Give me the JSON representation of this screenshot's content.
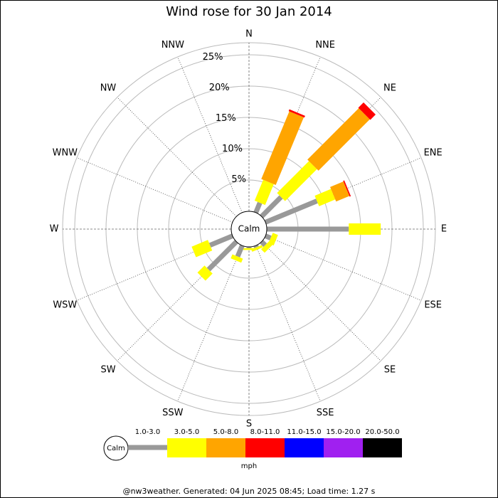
{
  "chart_data": {
    "type": "windrose",
    "title": "Wind rose for 30 Jan 2014",
    "directions": [
      "N",
      "NNE",
      "NE",
      "ENE",
      "E",
      "ESE",
      "SE",
      "SSE",
      "S",
      "SSW",
      "SW",
      "WSW",
      "W",
      "WNW",
      "NW",
      "NNW"
    ],
    "calm_label": "Calm",
    "series": [
      {
        "name": "1.0-3.0",
        "color": "#999999",
        "values": [
          0,
          1.7,
          4.4,
          8.9,
          13.1,
          0.9,
          0.8,
          0.3,
          0.2,
          1.9,
          6.3,
          3.9,
          0,
          0,
          0,
          0
        ]
      },
      {
        "name": "3.0-5.0",
        "color": "#ffff00",
        "values": [
          0,
          3.6,
          7.2,
          2.8,
          5.1,
          0.9,
          0.8,
          0.4,
          0.3,
          0.7,
          1.6,
          2.8,
          0,
          0,
          0,
          0
        ]
      },
      {
        "name": "5.0-8.0",
        "color": "#ffa500",
        "values": [
          0,
          11.7,
          11.6,
          2.3,
          0,
          0,
          0,
          0,
          0,
          0,
          0,
          0,
          0,
          0,
          0,
          0
        ]
      },
      {
        "name": "8.0-11.0",
        "color": "#ff0000",
        "values": [
          0,
          0.3,
          1.2,
          0.2,
          0,
          0,
          0,
          0,
          0,
          0,
          0,
          0,
          0,
          0,
          0,
          0
        ]
      },
      {
        "name": "11.0-15.0",
        "color": "#0000ff",
        "values": [
          0,
          0,
          0,
          0,
          0,
          0,
          0,
          0,
          0,
          0,
          0,
          0,
          0,
          0,
          0,
          0
        ]
      },
      {
        "name": "15.0-20.0",
        "color": "#a020f0",
        "values": [
          0,
          0,
          0,
          0,
          0,
          0,
          0,
          0,
          0,
          0,
          0,
          0,
          0,
          0,
          0,
          0
        ]
      },
      {
        "name": "20.0-50.0",
        "color": "#000000",
        "values": [
          0,
          0,
          0,
          0,
          0,
          0,
          0,
          0,
          0,
          0,
          0,
          0,
          0,
          0,
          0,
          0
        ]
      }
    ],
    "rlim": [
      0,
      25
    ],
    "rticks": [
      {
        "value": 5,
        "label": "5%"
      },
      {
        "value": 10,
        "label": "10%"
      },
      {
        "value": 15,
        "label": "15%"
      },
      {
        "value": 20,
        "label": "20%"
      },
      {
        "value": 25,
        "label": "25%"
      }
    ],
    "unit_label": "mph",
    "footer": "@nw3weather. Generated: 04 Jun 2025 08:45; Load time: 1.27 s"
  }
}
